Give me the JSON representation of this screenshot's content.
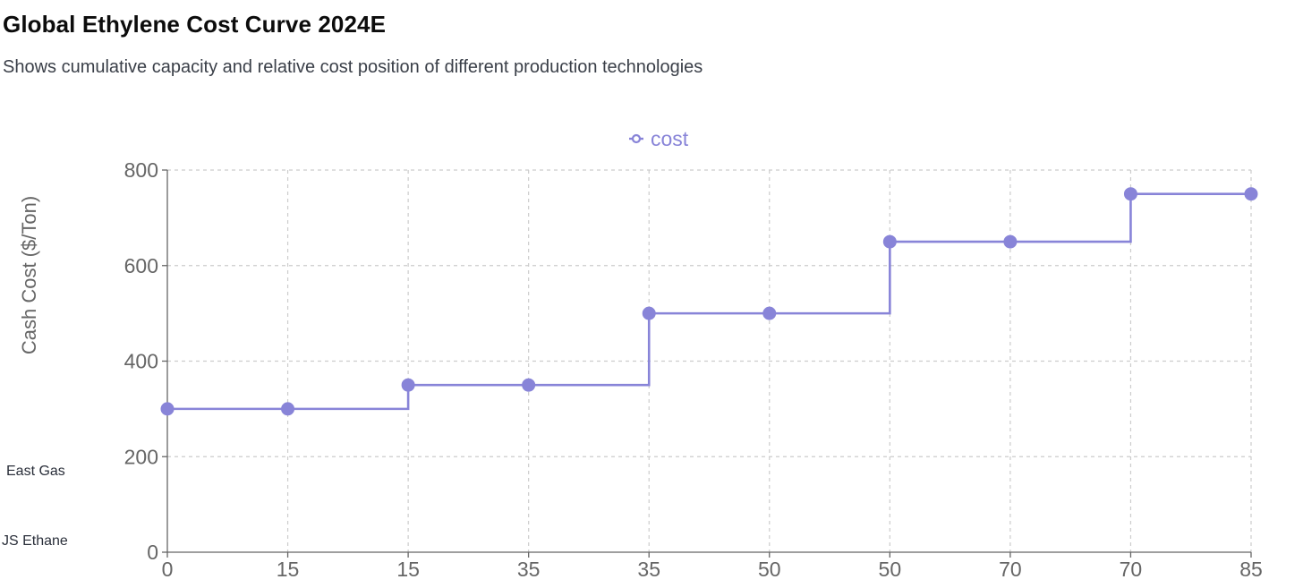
{
  "header": {
    "title": "Global Ethylene Cost Curve 2024E",
    "subtitle": "Shows cumulative capacity and relative cost position of different production technologies"
  },
  "side_labels": [
    "East Gas",
    "JS Ethane"
  ],
  "colors": {
    "series": "#8884d8",
    "grid": "#cccccc",
    "axis": "#666666",
    "tick_text": "#666666"
  },
  "chart_data": {
    "type": "line",
    "step": true,
    "title": "",
    "xlabel": "",
    "ylabel": "Cash Cost ($/Ton)",
    "categories": [
      "0",
      "15",
      "15",
      "35",
      "35",
      "50",
      "50",
      "70",
      "70",
      "85"
    ],
    "series": [
      {
        "name": "cost",
        "values": [
          300,
          300,
          350,
          350,
          500,
          500,
          650,
          650,
          750,
          750
        ]
      }
    ],
    "ylim": [
      0,
      800
    ],
    "yticks": [
      0,
      200,
      400,
      600,
      800
    ],
    "grid": true,
    "legend": "top-center"
  }
}
